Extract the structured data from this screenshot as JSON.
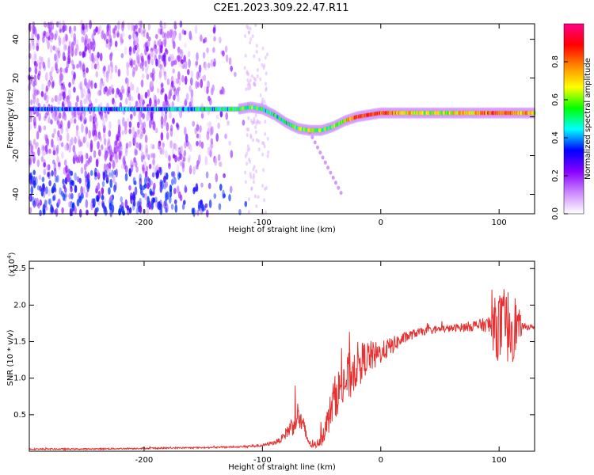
{
  "title": "C2E1.2023.309.22.47.R11",
  "chart_data": [
    {
      "type": "heatmap",
      "xlabel": "Height of straight line (km)",
      "ylabel": "Frequency (Hz)",
      "xlim": [
        -297,
        130
      ],
      "ylim": [
        -50,
        48
      ],
      "xticks": [
        -200,
        -100,
        0,
        100
      ],
      "xtick_labels": [
        "-200",
        "-100",
        "0",
        "100"
      ],
      "yticks": [
        -40,
        -20,
        0,
        20,
        40
      ],
      "ytick_labels": [
        "-40",
        "-20",
        "0",
        "20",
        "40"
      ],
      "colorbar": {
        "label": "Normalized spectral amplitude",
        "range": [
          0,
          1
        ],
        "ticks": [
          0.0,
          0.2,
          0.4,
          0.6,
          0.8
        ],
        "tick_labels": [
          "0.0",
          "0.2",
          "0.4",
          "0.6",
          "0.8"
        ],
        "colors": [
          "#ffffff",
          "#cc88ff",
          "#8800ff",
          "#0000ff",
          "#00ffff",
          "#00ff00",
          "#ffff00",
          "#ff8800",
          "#ff0000",
          "#ff0088"
        ]
      },
      "signal_track": {
        "x": [
          -297,
          -200,
          -150,
          -120,
          -110,
          -100,
          -90,
          -80,
          -70,
          -60,
          -50,
          -40,
          -30,
          -20,
          -10,
          0,
          20,
          50,
          80,
          100,
          130
        ],
        "freq": [
          4,
          4,
          4,
          4,
          5,
          4,
          1,
          -3,
          -6,
          -7,
          -7,
          -5,
          -2,
          0,
          1,
          2,
          2,
          2,
          2,
          2,
          2
        ],
        "amplitude": [
          0.35,
          0.4,
          0.45,
          0.5,
          0.55,
          0.5,
          0.5,
          0.5,
          0.55,
          0.6,
          0.55,
          0.6,
          0.65,
          0.85,
          0.9,
          0.8,
          0.7,
          0.6,
          0.75,
          0.85,
          0.7
        ]
      },
      "grid": false
    },
    {
      "type": "line",
      "xlabel": "Height of straight line (km)",
      "ylabel": "SNR (10 * v/v)",
      "yscale_label": "(x10",
      "yscale_exp": "4",
      "yscale_close": ")",
      "xlim": [
        -297,
        130
      ],
      "ylim": [
        0,
        2.6
      ],
      "xticks": [
        -200,
        -100,
        0,
        100
      ],
      "xtick_labels": [
        "-200",
        "-100",
        "0",
        "100"
      ],
      "yticks": [
        0.5,
        1.0,
        1.5,
        2.0,
        2.5
      ],
      "ytick_labels": [
        "0.5",
        "1.0",
        "1.5",
        "2.0",
        "2.5"
      ],
      "series": [
        {
          "color": "#e83030",
          "x": [
            -297,
            -250,
            -200,
            -150,
            -120,
            -110,
            -100,
            -90,
            -85,
            -80,
            -75,
            -70,
            -65,
            -60,
            -55,
            -50,
            -45,
            -40,
            -35,
            -30,
            -25,
            -20,
            -15,
            -10,
            -5,
            0,
            10,
            20,
            30,
            40,
            50,
            60,
            70,
            80,
            90,
            95,
            100,
            105,
            110,
            115,
            120,
            130
          ],
          "y": [
            0.03,
            0.03,
            0.04,
            0.05,
            0.06,
            0.07,
            0.08,
            0.12,
            0.15,
            0.25,
            0.35,
            0.5,
            0.3,
            0.1,
            0.07,
            0.2,
            0.4,
            0.7,
            0.85,
            0.95,
            1.05,
            1.2,
            1.25,
            1.3,
            1.3,
            1.35,
            1.45,
            1.55,
            1.62,
            1.65,
            1.67,
            1.68,
            1.7,
            1.72,
            1.73,
            1.72,
            1.7,
            1.68,
            1.75,
            1.72,
            1.7,
            1.7
          ],
          "noise": [
            0.01,
            0.01,
            0.01,
            0.01,
            0.01,
            0.02,
            0.02,
            0.03,
            0.04,
            0.08,
            0.15,
            0.2,
            0.15,
            0.05,
            0.03,
            0.12,
            0.2,
            0.3,
            0.3,
            0.35,
            0.35,
            0.3,
            0.25,
            0.22,
            0.2,
            0.15,
            0.12,
            0.08,
            0.06,
            0.05,
            0.05,
            0.05,
            0.06,
            0.08,
            0.1,
            0.35,
            0.5,
            0.45,
            0.6,
            0.35,
            0.05,
            0.03
          ]
        }
      ],
      "grid": false
    }
  ]
}
